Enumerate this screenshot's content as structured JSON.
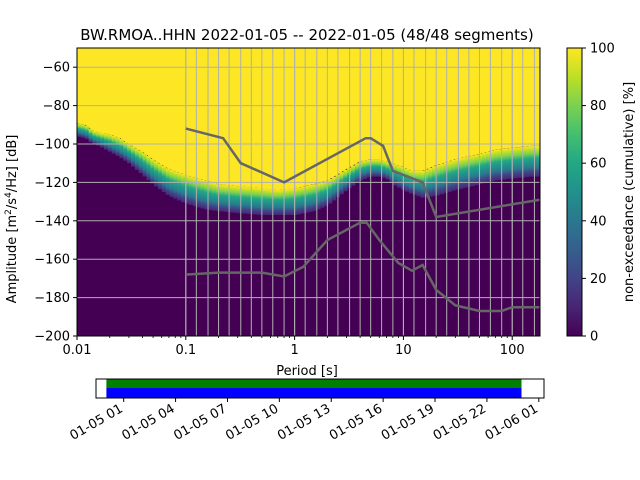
{
  "chart_data": {
    "type": "heatmap",
    "title": "BW.RMOA..HHN   2022-01-05 -- 2022-01-05  (48/48 segments)",
    "xlabel": "Period [s]",
    "ylabel": "Amplitude [m²/s⁴/Hz] [dB]",
    "x_scale": "log",
    "xlim": [
      0.01,
      180
    ],
    "ylim": [
      -200,
      -50
    ],
    "x_ticks": [
      {
        "value": 0.01,
        "label": "0.01"
      },
      {
        "value": 0.1,
        "label": "0.1"
      },
      {
        "value": 1,
        "label": "1"
      },
      {
        "value": 10,
        "label": "10"
      },
      {
        "value": 100,
        "label": "100"
      }
    ],
    "y_ticks": [
      -60,
      -80,
      -100,
      -120,
      -140,
      -160,
      -180,
      -200
    ],
    "grid": true,
    "grid_periods": [
      0.1,
      0.125,
      0.16,
      0.2,
      0.25,
      0.32,
      0.4,
      0.5,
      0.63,
      0.8,
      1,
      1.25,
      1.6,
      2,
      2.5,
      3.2,
      4,
      5,
      6.3,
      8,
      10,
      12.5,
      16,
      20,
      25,
      32,
      40,
      50,
      63,
      80,
      100,
      125,
      160
    ],
    "colorbar": {
      "label": "non-exceedance (cumulative) [%]",
      "range": [
        0,
        100
      ],
      "ticks": [
        0,
        20,
        40,
        60,
        80,
        100
      ],
      "colormap": "viridis"
    },
    "noise_band": {
      "comment_free": true,
      "period": [
        0.01,
        0.012,
        0.014,
        0.016,
        0.02,
        0.025,
        0.03,
        0.04,
        0.05,
        0.07,
        0.1,
        0.15,
        0.2,
        0.3,
        0.5,
        0.7,
        1,
        1.5,
        2,
        3,
        4,
        5,
        6,
        7,
        8,
        10,
        12,
        15,
        20,
        30,
        50,
        70,
        100,
        150,
        180
      ],
      "p10": [
        -96,
        -97,
        -100,
        -101,
        -104,
        -107,
        -110,
        -116,
        -121,
        -127,
        -131,
        -134,
        -135,
        -136,
        -137,
        -137,
        -137,
        -135,
        -132,
        -124,
        -119,
        -117,
        -117,
        -118,
        -121,
        -124,
        -126,
        -128,
        -127,
        -124,
        -121,
        -119,
        -118,
        -117,
        -117
      ],
      "p50": [
        -93,
        -94,
        -97,
        -98,
        -100,
        -102,
        -105,
        -110,
        -114,
        -119,
        -122,
        -125,
        -127,
        -129,
        -130,
        -130,
        -130,
        -128,
        -125,
        -118,
        -114,
        -113,
        -112,
        -113,
        -114,
        -117,
        -119,
        -120,
        -118,
        -114,
        -111,
        -109,
        -108,
        -107,
        -107
      ],
      "p90": [
        -89,
        -90,
        -93,
        -94,
        -95,
        -97,
        -100,
        -104,
        -108,
        -113,
        -116,
        -119,
        -121,
        -122,
        -123,
        -124,
        -123,
        -121,
        -119,
        -113,
        -109,
        -108,
        -108,
        -109,
        -110,
        -112,
        -114,
        -114,
        -111,
        -108,
        -105,
        -103,
        -102,
        -101,
        -101
      ]
    },
    "series": [
      {
        "x": [
          0.1,
          0.22,
          0.32,
          0.8,
          4.5,
          5,
          6.5,
          8,
          15,
          20,
          180
        ],
        "y": [
          -92,
          -97,
          -110,
          -120,
          -97,
          -97,
          -101,
          -114,
          -120,
          -138,
          -129
        ]
      },
      {
        "x": [
          0.1,
          0.2,
          0.5,
          0.8,
          1.2,
          2,
          4,
          4.6,
          6,
          9,
          12,
          15,
          20,
          30,
          50,
          80,
          100,
          180
        ],
        "y": [
          -168,
          -167,
          -167,
          -169,
          -164,
          -150,
          -141,
          -141,
          -150,
          -162,
          -166,
          -163,
          -176,
          -184,
          -187,
          -187,
          -185,
          -185
        ]
      }
    ],
    "time_axis": {
      "tick_labels": [
        "01-05 01",
        "01-05 04",
        "01-05 07",
        "01-05 10",
        "01-05 13",
        "01-05 16",
        "01-05 19",
        "01-05 22",
        "01-06 01"
      ],
      "coverage_colors": [
        "#008000",
        "#0000ff"
      ],
      "coverage_start_hour": 0,
      "coverage_end_hour": 24,
      "axis_start_hour": -0.6,
      "axis_end_hour": 25.3
    }
  },
  "colors": {
    "grid": "#b0b0b0",
    "line": "#666666",
    "above_band": "#fde725",
    "below_band": "#440154"
  }
}
